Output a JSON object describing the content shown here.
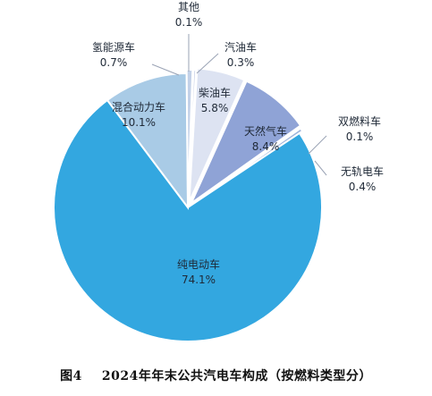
{
  "chart_data": {
    "type": "pie",
    "title": "2024年年末公共汽电车构成（按燃料类型分）",
    "figure_label": "图4",
    "slices": [
      {
        "name": "其他",
        "value": 0.1,
        "label": "0.1%",
        "color": "#b8c4dc"
      },
      {
        "name": "汽油车",
        "value": 0.3,
        "label": "0.3%",
        "color": "#c8d0e6"
      },
      {
        "name": "柴油车",
        "value": 5.8,
        "label": "5.8%",
        "color": "#dde3f2"
      },
      {
        "name": "天然气车",
        "value": 8.4,
        "label": "8.4%",
        "color": "#8fa3d6"
      },
      {
        "name": "双燃料车",
        "value": 0.1,
        "label": "0.1%",
        "color": "#b3bfdf"
      },
      {
        "name": "无轨电车",
        "value": 0.4,
        "label": "0.4%",
        "color": "#9fb4db"
      },
      {
        "name": "纯电动车",
        "value": 74.1,
        "label": "74.1%",
        "color": "#33a7e0"
      },
      {
        "name": "混合动力车",
        "value": 10.1,
        "label": "10.1%",
        "color": "#a9cbe6"
      },
      {
        "name": "氢能源车",
        "value": 0.7,
        "label": "0.7%",
        "color": "#c3d1e8"
      }
    ]
  }
}
